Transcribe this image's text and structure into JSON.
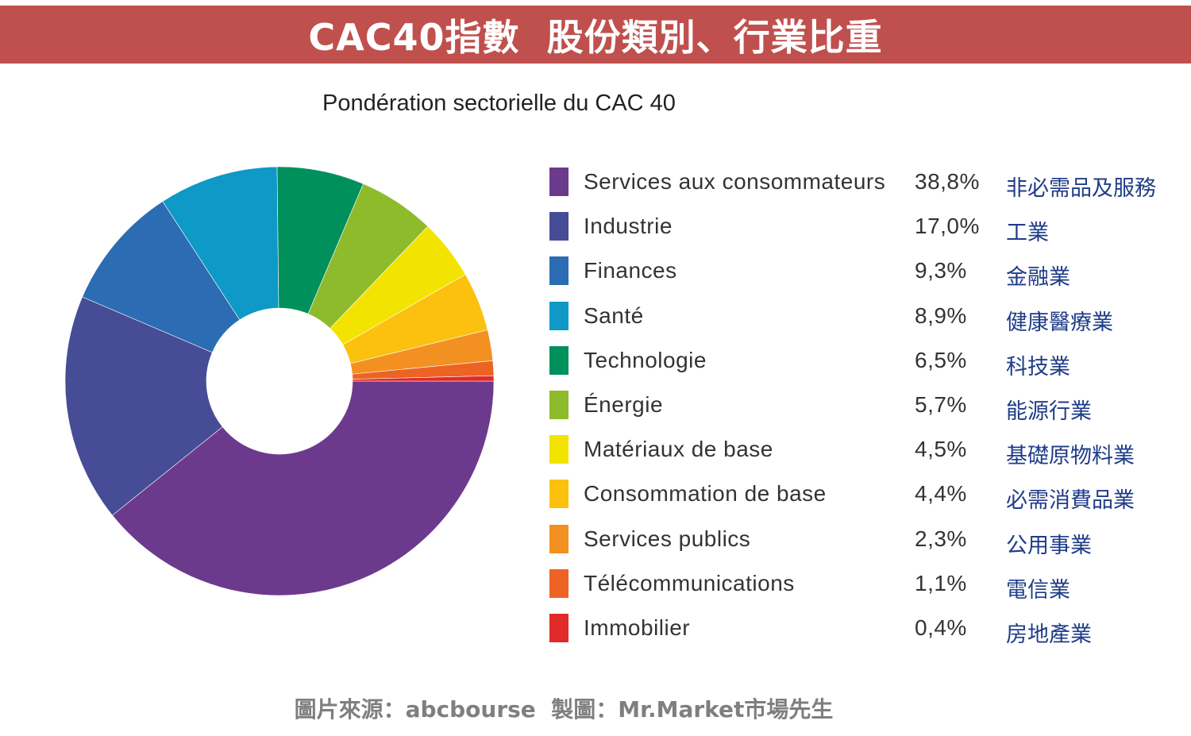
{
  "banner": {
    "title": "CAC40指數  股份類別、行業比重",
    "background": "#c0504d"
  },
  "source_note": "圖片來源：abcbourse  製圖：Mr.Market市場先生",
  "chart_data": {
    "type": "pie",
    "title": "Pondération sectorielle du CAC 40",
    "unit": "%",
    "legend_position": "right",
    "categories": [
      "Services aux consommateurs",
      "Industrie",
      "Finances",
      "Santé",
      "Technologie",
      "Énergie",
      "Matériaux de base",
      "Consommation de base",
      "Services publics",
      "Télécommunications",
      "Immobilier"
    ],
    "values": [
      38.8,
      17.0,
      9.3,
      8.9,
      6.5,
      5.7,
      4.5,
      4.4,
      2.3,
      1.1,
      0.4
    ],
    "value_labels": [
      "38,8%",
      "17,0%",
      "9,3%",
      "8,9%",
      "6,5%",
      "5,7%",
      "4,5%",
      "4,4%",
      "2,3%",
      "1,1%",
      "0,4%"
    ],
    "chinese_labels": [
      "非必需品及服務",
      "工業",
      "金融業",
      "健康醫療業",
      "科技業",
      "能源行業",
      "基礎原物料業",
      "必需消費品業",
      "公用事業",
      "電信業",
      "房地產業"
    ],
    "colors": [
      "#6c3a8c",
      "#474c96",
      "#2b6cb2",
      "#0e99c6",
      "#00905c",
      "#8dbb2b",
      "#f2e400",
      "#fcc10f",
      "#f29122",
      "#ec6323",
      "#e12a2a"
    ]
  }
}
